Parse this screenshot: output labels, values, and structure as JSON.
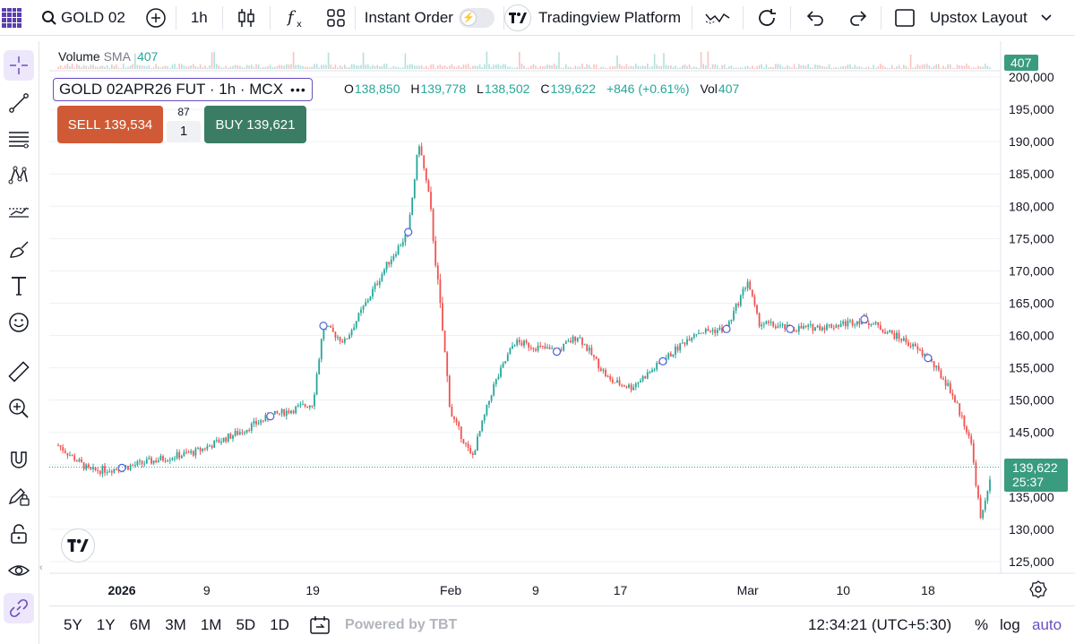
{
  "toolbar": {
    "symbol": "GOLD 02",
    "interval": "1h",
    "instant_order": "Instant Order",
    "platform": "Tradingview Platform",
    "layout": "Upstox Layout"
  },
  "legend": {
    "volume_label": "Volume",
    "sma_label": "SMA",
    "volume_value": "407",
    "symbol_full": "GOLD 02APR26 FUT · 1h · MCX",
    "more": "•••",
    "o_label": "O",
    "o_value": "138,850",
    "h_label": "H",
    "h_value": "139,778",
    "l_label": "L",
    "l_value": "138,502",
    "c_label": "C",
    "c_value": "139,622",
    "change": "+846 (+0.61%)",
    "vol_label": "Vol",
    "vol_value": "407"
  },
  "trade": {
    "sell_label": "SELL 139,534",
    "buy_label": "BUY 139,621",
    "spread": "87",
    "quantity": "1"
  },
  "price_badge": {
    "price": "139,622",
    "countdown": "25:37",
    "volume_badge": "407"
  },
  "bottom": {
    "ranges": [
      "5Y",
      "1Y",
      "6M",
      "3M",
      "1M",
      "5D",
      "1D"
    ],
    "powered_by": "Powered by TBT",
    "clock": "12:34:21 (UTC+5:30)",
    "percent": "%",
    "log": "log",
    "auto": "auto"
  },
  "colors": {
    "up": "#26a69a",
    "down": "#ef5350",
    "accent": "#6a4fc0"
  },
  "icons": [
    "grid-icon",
    "search-icon",
    "add-icon",
    "candles-icon",
    "fx-icon",
    "templates-icon",
    "lightning-icon",
    "tv-logo-icon",
    "compare-icon",
    "refresh-icon",
    "undo-icon",
    "redo-icon",
    "layout-icon",
    "chevron-down-icon"
  ],
  "chart_data": {
    "type": "candlestick",
    "x_ticks": [
      "2026",
      "9",
      "19",
      "Feb",
      "9",
      "17",
      "Mar",
      "10",
      "18"
    ],
    "y_ticks": [
      "125,000",
      "130,000",
      "135,000",
      "140,000",
      "145,000",
      "150,000",
      "155,000",
      "160,000",
      "165,000",
      "170,000",
      "175,000",
      "180,000",
      "185,000",
      "190,000",
      "195,000",
      "200,000"
    ],
    "ylim": [
      125000,
      200000
    ],
    "last_price": 139622,
    "series": [
      {
        "name": "GOLD 02APR26 FUT",
        "x": [
          "2025-12-26",
          "2025-12-29",
          "2026-01-01",
          "2026-01-05",
          "2026-01-08",
          "2026-01-12",
          "2026-01-15",
          "2026-01-19",
          "2026-01-20",
          "2026-01-22",
          "2026-01-26",
          "2026-01-28",
          "2026-01-29",
          "2026-01-30",
          "2026-02-01",
          "2026-02-03",
          "2026-02-05",
          "2026-02-07",
          "2026-02-11",
          "2026-02-13",
          "2026-02-16",
          "2026-02-18",
          "2026-02-21",
          "2026-02-24",
          "2026-02-27",
          "2026-03-01",
          "2026-03-02",
          "2026-03-05",
          "2026-03-09",
          "2026-03-12",
          "2026-03-16",
          "2026-03-18",
          "2026-03-20",
          "2026-03-22",
          "2026-03-23",
          "2026-03-24"
        ],
        "close": [
          143000,
          139000,
          139500,
          141000,
          142000,
          145000,
          147500,
          149500,
          161500,
          159000,
          171000,
          176000,
          190000,
          181000,
          148000,
          141000,
          152000,
          159000,
          157500,
          160000,
          153000,
          152000,
          156000,
          160500,
          161000,
          168500,
          162000,
          161000,
          161500,
          162500,
          159000,
          156500,
          152000,
          144000,
          131000,
          139622
        ]
      }
    ]
  }
}
